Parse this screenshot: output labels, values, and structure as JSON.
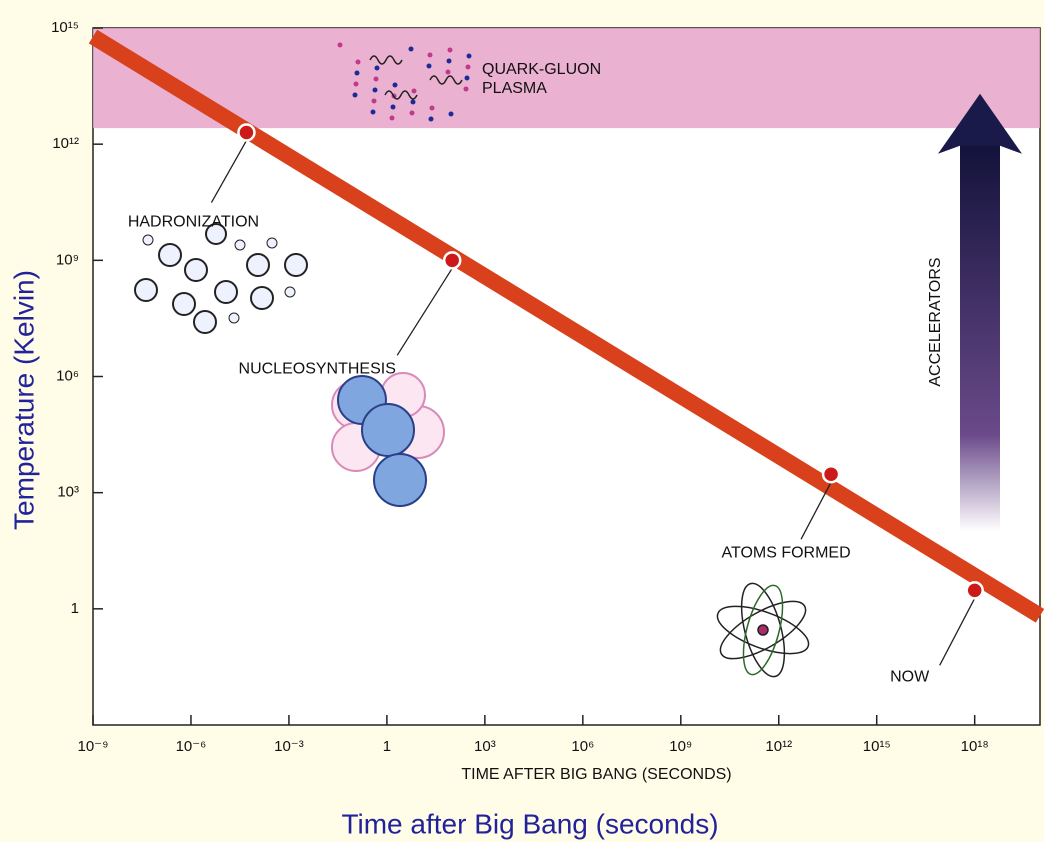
{
  "chart_data": {
    "type": "line",
    "x_label": "TIME AFTER BIG BANG (SECONDS)",
    "x_title": "Time after Big Bang (seconds)",
    "y_title": "Temperature (Kelvin)",
    "log_x": true,
    "log_y": true,
    "xlim": [
      1e-09,
      1e+20
    ],
    "ylim": [
      0.001,
      1000000000000000.0
    ],
    "xticks": [
      {
        "value": 1e-09,
        "label": "10⁻⁹"
      },
      {
        "value": 1e-06,
        "label": "10⁻⁶"
      },
      {
        "value": 0.001,
        "label": "10⁻³"
      },
      1,
      {
        "value": 1000,
        "label": "10³"
      },
      {
        "value": 1000000.0,
        "label": "10⁶"
      },
      {
        "value": 1000000000.0,
        "label": "10⁹"
      },
      {
        "value": 1000000000000.0,
        "label": "10¹²"
      },
      {
        "value": 1000000000000000.0,
        "label": "10¹⁵"
      },
      {
        "value": 1e+18,
        "label": "10¹⁸"
      }
    ],
    "yticks": [
      {
        "value": 1000000000000000.0,
        "label": "10¹⁵"
      },
      {
        "value": 1000000000000.0,
        "label": "10¹²"
      },
      {
        "value": 1000000000.0,
        "label": "10⁹"
      },
      {
        "value": 1000000.0,
        "label": "10⁶"
      },
      {
        "value": 1000,
        "label": "10³"
      },
      1
    ],
    "line": {
      "color": "#d9401c",
      "x": [
        1e-09,
        1e+20
      ],
      "values": [
        600000000000000.0,
        0.66
      ]
    },
    "events": {
      "color": "#cc1a1a",
      "labels": [
        "HADRONIZATION",
        "NUCLEOSYNTHESIS",
        "ATOMS FORMED",
        "NOW"
      ],
      "x": [
        5e-05,
        100,
        40000000000000.0,
        1e+18
      ],
      "values": [
        2000000000000.0,
        1000000000.0,
        3000,
        3
      ]
    },
    "plasma_region": {
      "label": [
        "QUARK-GLUON",
        "PLASMA"
      ],
      "ylim": [
        2600000000000.0,
        1000000000000000.0
      ],
      "color": "#e7a3c9"
    },
    "accelerators": {
      "label": "ACCELERATORS",
      "range": [
        100,
        20000000000000.0
      ],
      "color": "#1a1a4a"
    }
  }
}
